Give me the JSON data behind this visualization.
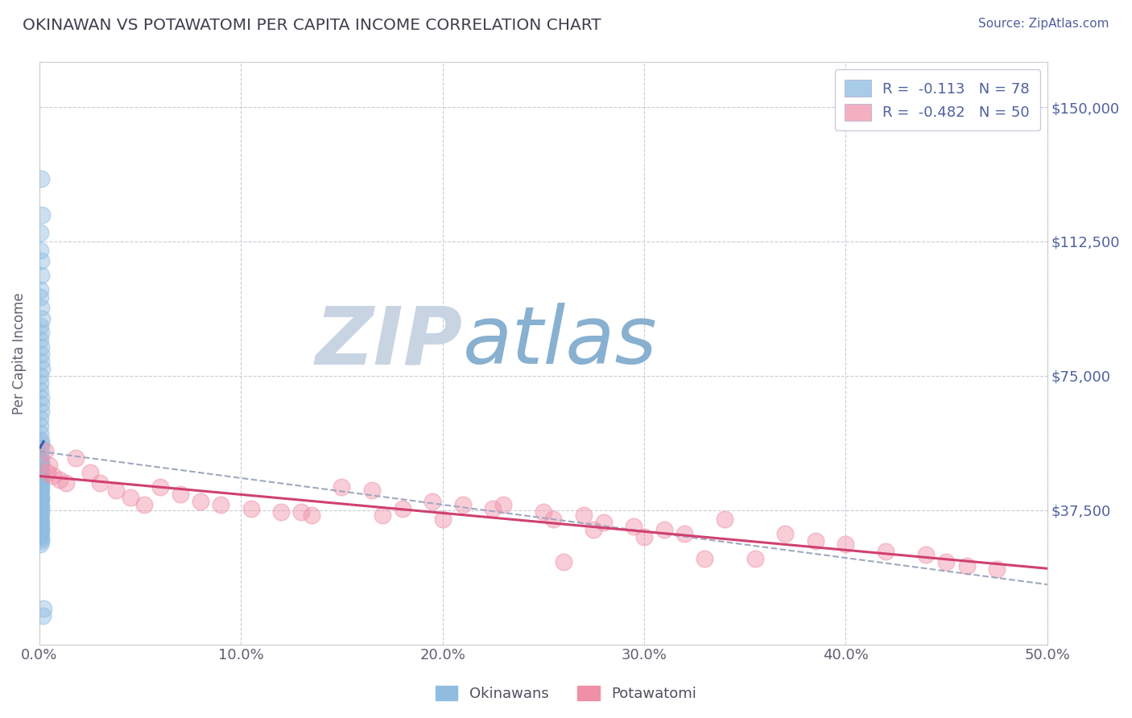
{
  "title": "OKINAWAN VS POTAWATOMI PER CAPITA INCOME CORRELATION CHART",
  "source": "Source: ZipAtlas.com",
  "ylabel": "Per Capita Income",
  "xlim": [
    0.0,
    50.0
  ],
  "ylim": [
    0,
    162500
  ],
  "yticks": [
    0,
    37500,
    75000,
    112500,
    150000
  ],
  "ytick_labels": [
    "",
    "$37,500",
    "$75,000",
    "$112,500",
    "$150,000"
  ],
  "xticks": [
    0,
    10,
    20,
    30,
    40,
    50
  ],
  "xtick_labels": [
    "0.0%",
    "10.0%",
    "20.0%",
    "30.0%",
    "40.0%",
    "50.0%"
  ],
  "okinawan_color": "#90bce0",
  "potawatomi_color": "#f090a8",
  "legend_blue_color": "#a8cce8",
  "legend_pink_color": "#f4b0c0",
  "trend_blue_color": "#3060b0",
  "trend_pink_color": "#d04070",
  "trend_gray_color": "#a0a8c0",
  "background_color": "#ffffff",
  "grid_color": "#c8ccd8",
  "title_color": "#404050",
  "tick_color": "#5060a0",
  "watermark_zip": "ZIP",
  "watermark_atlas": "atlas",
  "watermark_color_zip": "#c8d4e4",
  "watermark_color_atlas": "#90b8d8",
  "okinawan_x": [
    0.08,
    0.12,
    0.05,
    0.06,
    0.07,
    0.09,
    0.04,
    0.03,
    0.1,
    0.11,
    0.05,
    0.07,
    0.06,
    0.08,
    0.07,
    0.09,
    0.13,
    0.04,
    0.05,
    0.06,
    0.07,
    0.08,
    0.09,
    0.06,
    0.05,
    0.04,
    0.1,
    0.07,
    0.08,
    0.05,
    0.06,
    0.09,
    0.07,
    0.05,
    0.04,
    0.08,
    0.06,
    0.07,
    0.05,
    0.06,
    0.07,
    0.08,
    0.05,
    0.06,
    0.07,
    0.04,
    0.06,
    0.05,
    0.07,
    0.08,
    0.04,
    0.05,
    0.06,
    0.07,
    0.08,
    0.05,
    0.06,
    0.07,
    0.05,
    0.06,
    0.04,
    0.05,
    0.07,
    0.06,
    0.05,
    0.08,
    0.06,
    0.07,
    0.04,
    0.05,
    0.06,
    0.07,
    0.08,
    0.05,
    0.2,
    0.15,
    0.06,
    0.03
  ],
  "okinawan_y": [
    130000,
    120000,
    115000,
    110000,
    107000,
    103000,
    99000,
    97000,
    94000,
    91000,
    89000,
    87000,
    85000,
    83000,
    81000,
    79000,
    77000,
    75000,
    73000,
    71000,
    69000,
    67000,
    65000,
    63000,
    61000,
    59000,
    57000,
    56000,
    55000,
    53000,
    52000,
    51000,
    50000,
    49000,
    48000,
    47500,
    47000,
    46500,
    46000,
    45500,
    45000,
    44500,
    44000,
    43500,
    43000,
    42500,
    42000,
    41500,
    41000,
    40500,
    40000,
    39500,
    39000,
    38500,
    38000,
    37500,
    37000,
    36500,
    36000,
    35500,
    35000,
    34500,
    34000,
    33500,
    33000,
    32500,
    32000,
    31500,
    31000,
    30500,
    30000,
    29500,
    29000,
    28000,
    10000,
    8000,
    51000,
    44000
  ],
  "potawatomi_x": [
    0.3,
    0.5,
    0.4,
    0.7,
    1.0,
    1.3,
    1.8,
    2.5,
    3.0,
    3.8,
    4.5,
    5.2,
    6.0,
    7.0,
    8.0,
    9.0,
    10.5,
    12.0,
    13.5,
    15.0,
    16.5,
    18.0,
    19.5,
    21.0,
    22.5,
    13.0,
    17.0,
    20.0,
    23.0,
    25.0,
    27.0,
    25.5,
    28.0,
    29.5,
    31.0,
    32.0,
    34.0,
    35.5,
    37.0,
    30.0,
    38.5,
    40.0,
    42.0,
    44.0,
    33.0,
    27.5,
    45.0,
    46.0,
    47.5,
    26.0
  ],
  "potawatomi_y": [
    54000,
    50000,
    48000,
    47000,
    46000,
    45000,
    52000,
    48000,
    45000,
    43000,
    41000,
    39000,
    44000,
    42000,
    40000,
    39000,
    38000,
    37000,
    36000,
    44000,
    43000,
    38000,
    40000,
    39000,
    38000,
    37000,
    36000,
    35000,
    39000,
    37000,
    36000,
    35000,
    34000,
    33000,
    32000,
    31000,
    35000,
    24000,
    31000,
    30000,
    29000,
    28000,
    26000,
    25000,
    24000,
    32000,
    23000,
    22000,
    21000,
    23000
  ]
}
